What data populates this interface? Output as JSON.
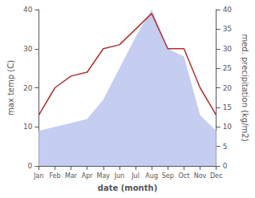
{
  "chart_data": {
    "type": "line",
    "xlabel": "date (month)",
    "ylabel": "max temp (C)",
    "y2label": "med. precipitation (kg/m2)",
    "categories": [
      "Jan",
      "Feb",
      "Mar",
      "Apr",
      "May",
      "Jun",
      "Jul",
      "Aug",
      "Sep",
      "Oct",
      "Nov",
      "Dec"
    ],
    "series": [
      {
        "type": "area",
        "axis": "y2",
        "color": "#c5cdf0",
        "values": [
          9,
          10,
          11,
          12,
          17,
          25,
          33,
          40,
          30,
          28,
          13,
          9
        ]
      },
      {
        "type": "line",
        "color": "#b03030",
        "values": [
          13,
          20,
          23,
          24,
          30,
          31,
          35,
          39,
          30,
          30,
          20,
          13
        ]
      }
    ],
    "ylim": [
      0,
      40
    ],
    "yticks": [
      0,
      10,
      20,
      30,
      40
    ],
    "y2lim": [
      0,
      40
    ],
    "y2ticks": [
      0,
      5,
      10,
      15,
      20,
      25,
      30,
      35,
      40
    ],
    "grid": false
  }
}
